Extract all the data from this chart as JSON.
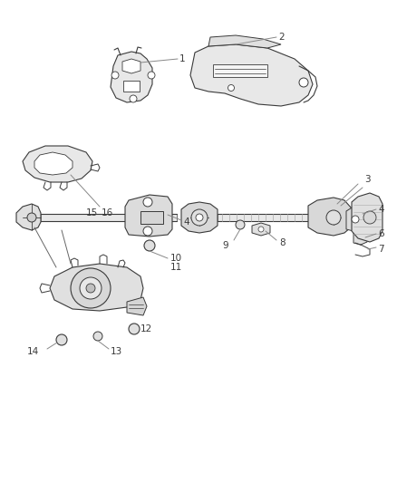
{
  "background_color": "#ffffff",
  "line_color": "#3a3a3a",
  "label_color": "#3a3a3a",
  "leader_color": "#888888",
  "fig_width": 4.38,
  "fig_height": 5.33,
  "dpi": 100,
  "parts_fill": "#f0f0f0",
  "parts_stroke": "#3a3a3a",
  "label_fontsize": 7.5
}
